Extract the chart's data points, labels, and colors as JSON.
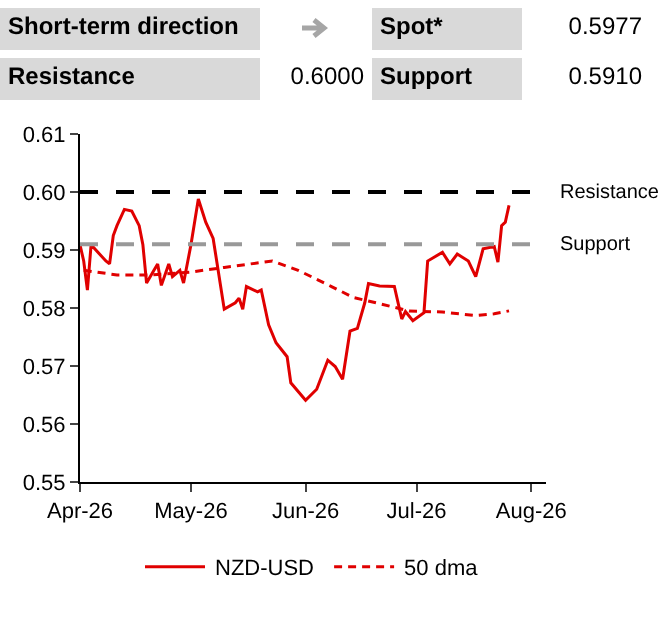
{
  "chart_data": {
    "type": "line",
    "annotations": [
      "Short-term direction",
      "Spot*",
      "0.5977",
      "Resistance",
      "0.6000",
      "Support",
      "0.5910"
    ],
    "series": [
      {
        "name": "NZD-USD",
        "color": "#e00000",
        "line_style": "solid",
        "x": [
          "2026-04-01",
          "2026-04-02",
          "2026-04-03",
          "2026-04-04",
          "2026-04-08",
          "2026-04-09",
          "2026-04-10",
          "2026-04-11",
          "2026-04-13",
          "2026-04-15",
          "2026-04-17",
          "2026-04-18",
          "2026-04-19",
          "2026-04-21",
          "2026-04-22",
          "2026-04-23",
          "2026-04-25",
          "2026-04-26",
          "2026-04-28",
          "2026-04-29",
          "2026-05-01",
          "2026-05-03",
          "2026-05-05",
          "2026-05-07",
          "2026-05-10",
          "2026-05-13",
          "2026-05-14",
          "2026-05-15",
          "2026-05-16",
          "2026-05-19",
          "2026-05-20",
          "2026-05-22",
          "2026-05-24",
          "2026-05-27",
          "2026-05-28",
          "2026-06-01",
          "2026-06-04",
          "2026-06-07",
          "2026-06-09",
          "2026-06-11",
          "2026-06-13",
          "2026-06-15",
          "2026-06-17",
          "2026-06-18",
          "2026-06-21",
          "2026-06-25",
          "2026-06-27",
          "2026-06-28",
          "2026-06-30",
          "2026-07-03",
          "2026-07-04",
          "2026-07-08",
          "2026-07-10",
          "2026-07-12",
          "2026-07-15",
          "2026-07-17",
          "2026-07-19",
          "2026-07-22",
          "2026-07-23",
          "2026-07-24",
          "2026-07-25",
          "2026-07-26"
        ],
        "values": [
          0.5909,
          0.5881,
          0.5831,
          0.5909,
          0.5881,
          0.5876,
          0.5925,
          0.5942,
          0.597,
          0.5967,
          0.5942,
          0.5909,
          0.5843,
          0.5865,
          0.5876,
          0.5839,
          0.5876,
          0.5854,
          0.5865,
          0.5843,
          0.5909,
          0.5988,
          0.5948,
          0.592,
          0.5798,
          0.5809,
          0.5817,
          0.5798,
          0.5837,
          0.5828,
          0.5831,
          0.5771,
          0.574,
          0.5716,
          0.5671,
          0.5641,
          0.566,
          0.571,
          0.5699,
          0.5677,
          0.576,
          0.5765,
          0.5809,
          0.5842,
          0.5838,
          0.5837,
          0.5781,
          0.5794,
          0.5778,
          0.5792,
          0.5881,
          0.5896,
          0.5876,
          0.5893,
          0.5881,
          0.5854,
          0.5902,
          0.5906,
          0.5879,
          0.5942,
          0.5948,
          0.5977
        ]
      },
      {
        "name": "50 dma",
        "color": "#e00000",
        "line_style": "dashed",
        "x": [
          "2026-04-02",
          "2026-04-11",
          "2026-04-20",
          "2026-05-01",
          "2026-05-10",
          "2026-05-23",
          "2026-05-30",
          "2026-06-08",
          "2026-06-14",
          "2026-06-20",
          "2026-06-29",
          "2026-07-08",
          "2026-07-17",
          "2026-07-22",
          "2026-07-26"
        ],
        "values": [
          0.5865,
          0.5857,
          0.5857,
          0.5862,
          0.587,
          0.5881,
          0.5865,
          0.5837,
          0.5818,
          0.5809,
          0.5795,
          0.5793,
          0.5787,
          0.579,
          0.5795
        ]
      }
    ],
    "ref_lines": [
      {
        "axis": "y",
        "value": 0.6,
        "label": "Resistance",
        "color": "#000000",
        "line_style": "dashed"
      },
      {
        "axis": "y",
        "value": 0.591,
        "label": "Support",
        "color": "#999999",
        "line_style": "dashed"
      }
    ],
    "xlim": [
      "2026-04-01",
      "2026-08-05"
    ],
    "xticks": [
      {
        "value": "2026-04-01",
        "label": "Apr-26"
      },
      {
        "value": "2026-05-01",
        "label": "May-26"
      },
      {
        "value": "2026-06-01",
        "label": "Jun-26"
      },
      {
        "value": "2026-07-01",
        "label": "Jul-26"
      },
      {
        "value": "2026-08-01",
        "label": "Aug-26"
      }
    ],
    "ylim": [
      0.55,
      0.61
    ],
    "yticks": [
      {
        "value": 0.55,
        "label": "0.55"
      },
      {
        "value": 0.56,
        "label": "0.56"
      },
      {
        "value": 0.57,
        "label": "0.57"
      },
      {
        "value": 0.58,
        "label": "0.58"
      },
      {
        "value": 0.59,
        "label": "0.59"
      },
      {
        "value": 0.6,
        "label": "0.60"
      },
      {
        "value": 0.61,
        "label": "0.61"
      }
    ],
    "legend": "bottom",
    "grid": false
  }
}
